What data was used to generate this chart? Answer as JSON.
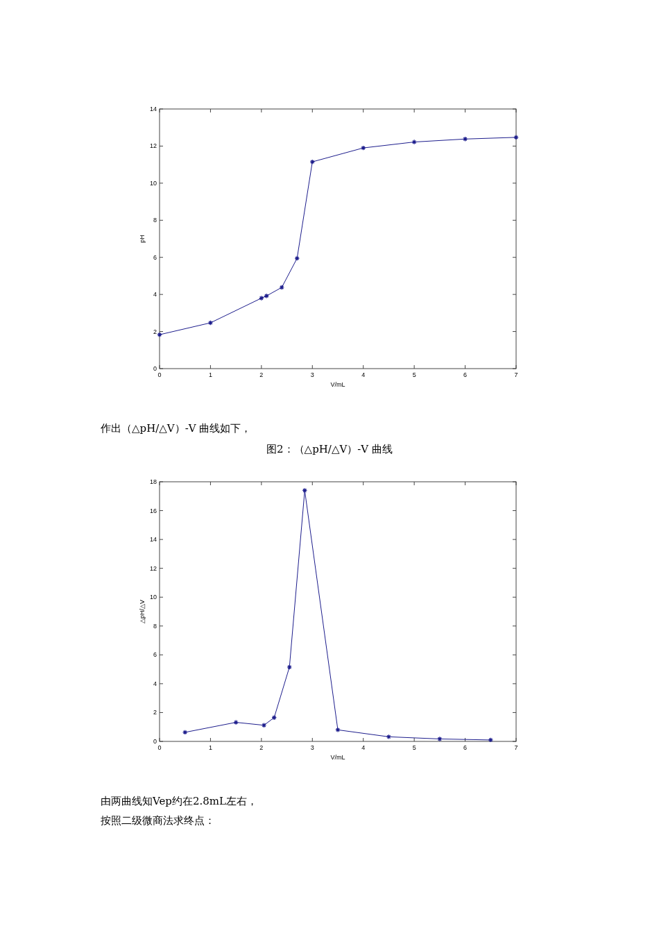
{
  "chart_data": [
    {
      "type": "line",
      "xlabel": "V/mL",
      "ylabel": "pH",
      "xlim": [
        0,
        7
      ],
      "ylim": [
        0,
        14
      ],
      "xticks": [
        0,
        1,
        2,
        3,
        4,
        5,
        6,
        7
      ],
      "yticks": [
        0,
        2,
        4,
        6,
        8,
        10,
        12,
        14
      ],
      "marker": "cross",
      "grid": false,
      "annotations": [
        "作出（△pH/△V）-V 曲线如下，"
      ],
      "series": [
        {
          "color": "#1c1c8c",
          "x": [
            0,
            1,
            2,
            2.1,
            2.4,
            2.7,
            3,
            4,
            5,
            6,
            7
          ],
          "values": [
            1.83,
            2.47,
            3.8,
            3.92,
            4.38,
            5.95,
            11.15,
            11.9,
            12.22,
            12.38,
            12.47
          ]
        }
      ]
    },
    {
      "type": "line",
      "title": "图2：（△pH/△V）-V 曲线",
      "xlabel": "V/mL",
      "ylabel": "△pH/△V",
      "xlim": [
        0,
        7
      ],
      "ylim": [
        0,
        18
      ],
      "xticks": [
        0,
        1,
        2,
        3,
        4,
        5,
        6,
        7
      ],
      "yticks": [
        0,
        2,
        4,
        6,
        8,
        10,
        12,
        14,
        16,
        18
      ],
      "marker": "cross",
      "grid": false,
      "annotations": [
        "由两曲线知Vep约在2.8mL左右，",
        "按照二级微商法求终点："
      ],
      "series": [
        {
          "color": "#1c1c8c",
          "x": [
            0.5,
            1.5,
            2.05,
            2.25,
            2.55,
            2.85,
            3.5,
            4.5,
            5.5,
            6.5
          ],
          "values": [
            0.63,
            1.32,
            1.12,
            1.65,
            5.15,
            17.4,
            0.8,
            0.32,
            0.17,
            0.1
          ]
        }
      ]
    }
  ]
}
